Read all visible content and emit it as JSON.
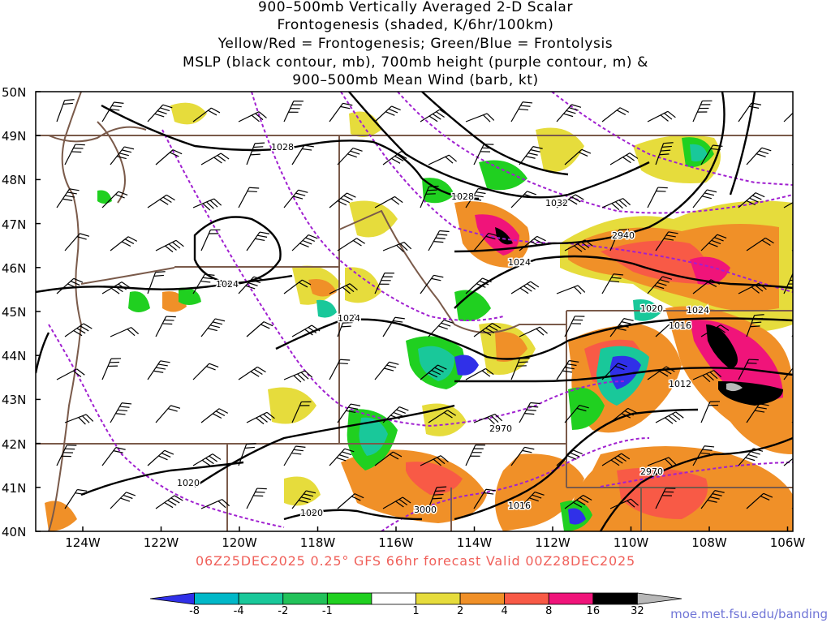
{
  "title": {
    "line1": "900–500mb Vertically Averaged 2-D Scalar",
    "line2": "Frontogenesis (shaded, K/6hr/100km)",
    "line3": "Yellow/Red = Frontogenesis;  Green/Blue = Frontolysis",
    "line4": "MSLP (black contour, mb), 700mb height (purple contour, m) &",
    "line5": "900–500mb Mean Wind (barb, kt)"
  },
  "valid_line": "06Z25DEC2025 0.25° GFS 66hr forecast Valid 00Z28DEC2025",
  "credit": "moe.met.fsu.edu/banding",
  "lat_labels": [
    "50N",
    "49N",
    "48N",
    "47N",
    "46N",
    "45N",
    "44N",
    "43N",
    "42N",
    "41N",
    "40N"
  ],
  "lon_labels": [
    "124W",
    "122W",
    "120W",
    "118W",
    "116W",
    "114W",
    "112W",
    "110W",
    "108W",
    "106W"
  ],
  "mslp_labels": [
    "1028",
    "1028",
    "1032",
    "1024",
    "1024",
    "1024",
    "1020",
    "1016",
    "1012",
    "1024",
    "1020",
    "1016",
    "1020"
  ],
  "height_labels": [
    "2940",
    "2970",
    "2970",
    "3000"
  ],
  "colorbar": {
    "labels": [
      "-8",
      "-4",
      "-2",
      "-1",
      "1",
      "2",
      "4",
      "8",
      "16",
      "32"
    ],
    "colors": [
      "#3030e8",
      "#00b8c8",
      "#19c89a",
      "#22c25a",
      "#20d020",
      "#ffffff",
      "#e6dc3c",
      "#f09028",
      "#f85a46",
      "#f0147a",
      "#000000",
      "#b8b8b8"
    ]
  },
  "colors": {
    "mslp": "#000000",
    "height": "#a020d0",
    "borders": "#7a5a4a",
    "valid_text": "#f0605a",
    "credit_text": "#6f74d6"
  }
}
